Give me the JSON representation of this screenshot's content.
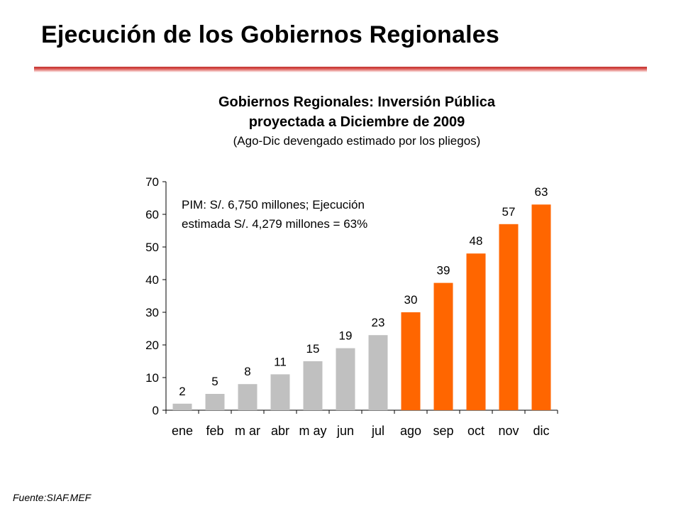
{
  "slide": {
    "title": "Ejecución de los Gobiernos Regionales",
    "source": "Fuente:SIAF.MEF"
  },
  "colors": {
    "title_rule": "#c0312c",
    "actual_bars": "#c0c0c0",
    "projected_bars": "#ff6600"
  },
  "chart_data": {
    "type": "bar",
    "title": "Gobiernos Regionales: Inversión Pública",
    "title_line2": "proyectada a Diciembre de 2009",
    "subtitle": "(Ago-Dic devengado estimado por los pliegos)",
    "categories": [
      "ene",
      "feb",
      "m ar",
      "abr",
      "m ay",
      "jun",
      "jul",
      "ago",
      "sep",
      "oct",
      "nov",
      "dic"
    ],
    "values": [
      2,
      5,
      8,
      11,
      15,
      19,
      23,
      30,
      39,
      48,
      57,
      63
    ],
    "data_labels": [
      "2",
      "5",
      "8",
      "11",
      "15",
      "19",
      "23",
      "30",
      "39",
      "48",
      "57",
      "63"
    ],
    "bar_colors": [
      "#c0c0c0",
      "#c0c0c0",
      "#c0c0c0",
      "#c0c0c0",
      "#c0c0c0",
      "#c0c0c0",
      "#c0c0c0",
      "#ff6600",
      "#ff6600",
      "#ff6600",
      "#ff6600",
      "#ff6600"
    ],
    "ylim": [
      0,
      70
    ],
    "yticks": [
      0,
      10,
      20,
      30,
      40,
      50,
      60,
      70
    ],
    "ytick_labels": [
      "0",
      "10",
      "20",
      "30",
      "40",
      "50",
      "60",
      "70"
    ],
    "grid": false,
    "legend": "none",
    "annotation": {
      "line1": "PIM: S/. 6,750 millones; Ejecución",
      "line2": "estimada S/. 4,279 millones = 63%"
    }
  }
}
